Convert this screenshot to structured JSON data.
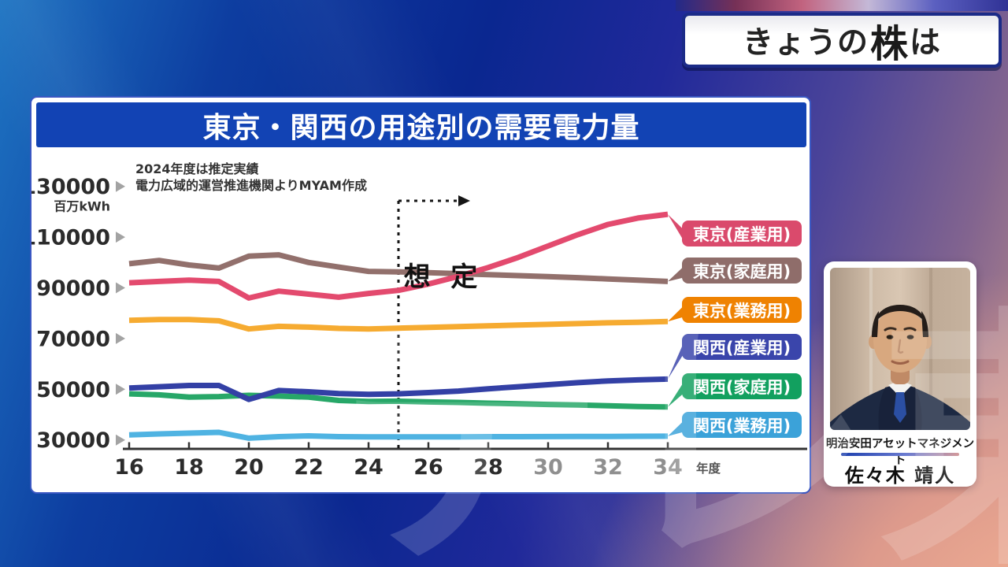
{
  "header": {
    "program_title": "きょうの株は",
    "title_parts": [
      "きょうの",
      "株",
      "は"
    ]
  },
  "chart": {
    "note_line1": "2024年度は推定実績",
    "note_line2": "電力広域的運営推進機関よりMYAM作成"
  },
  "chart_data": {
    "type": "line",
    "title": "東京・関西の用途別の需要電力量",
    "unit_label": "百万kWh",
    "x_axis_label": "年度",
    "x": [
      2016,
      2017,
      2018,
      2019,
      2020,
      2021,
      2022,
      2023,
      2024,
      2025,
      2026,
      2027,
      2028,
      2029,
      2030,
      2031,
      2032,
      2033,
      2034
    ],
    "x_tick_labels": [
      "16",
      "18",
      "20",
      "22",
      "24",
      "26",
      "28",
      "30",
      "32",
      "34"
    ],
    "x_gray_from_tick_index": 7,
    "y_ticks": [
      30000,
      50000,
      70000,
      90000,
      110000,
      130000
    ],
    "ylim": [
      28000,
      135000
    ],
    "grid": false,
    "legend_position": "right-badges",
    "annotation": {
      "label": "想 定",
      "x_year": 2025,
      "note": "dashed vertical line with rightward dashed arrow marks forecast region"
    },
    "series": [
      {
        "name": "東京(産業用)",
        "line_color": "#e34a6e",
        "badge_color": "#da4a6c",
        "values": [
          92000,
          92500,
          93000,
          92500,
          86000,
          88700,
          87500,
          86300,
          87800,
          89000,
          91500,
          94500,
          98000,
          102000,
          106500,
          111000,
          115000,
          117500,
          119000
        ]
      },
      {
        "name": "東京(家庭用)",
        "line_color": "#92706c",
        "badge_color": "#8f6d6a",
        "values": [
          99500,
          100800,
          99000,
          97800,
          102500,
          103000,
          100000,
          98200,
          96500,
          96300,
          96000,
          95600,
          95200,
          94800,
          94400,
          94000,
          93500,
          93000,
          92500
        ]
      },
      {
        "name": "東京(業務用)",
        "line_color": "#f6ab31",
        "badge_color": "#ef8201",
        "values": [
          77200,
          77500,
          77500,
          77000,
          73800,
          74800,
          74500,
          74000,
          73800,
          74100,
          74400,
          74700,
          75000,
          75300,
          75600,
          75900,
          76200,
          76400,
          76700
        ]
      },
      {
        "name": "関西(産業用)",
        "line_color": "#3340a5",
        "badge_color": "#3a45ab",
        "values": [
          50500,
          51000,
          51500,
          51500,
          46000,
          49500,
          49000,
          48300,
          48000,
          48200,
          48700,
          49300,
          50200,
          51000,
          51800,
          52600,
          53300,
          53700,
          54000
        ]
      },
      {
        "name": "関西(家庭用)",
        "line_color": "#27a768",
        "badge_color": "#12a05f",
        "values": [
          48200,
          47800,
          46900,
          47100,
          47600,
          47300,
          46900,
          45600,
          45200,
          45300,
          45000,
          44800,
          44500,
          44300,
          44000,
          43800,
          43500,
          43200,
          43000
        ]
      },
      {
        "name": "関西(業務用)",
        "line_color": "#4fb3e2",
        "badge_color": "#3ba2d9",
        "values": [
          32000,
          32400,
          32700,
          33000,
          30700,
          31300,
          31600,
          31300,
          31200,
          31200,
          31200,
          31250,
          31300,
          31300,
          31350,
          31400,
          31400,
          31450,
          31500
        ]
      }
    ]
  },
  "analyst": {
    "company": "明治安田アセットマネジメント",
    "name": "佐々木 靖人"
  },
  "watermark": {
    "text": "テレ東"
  }
}
